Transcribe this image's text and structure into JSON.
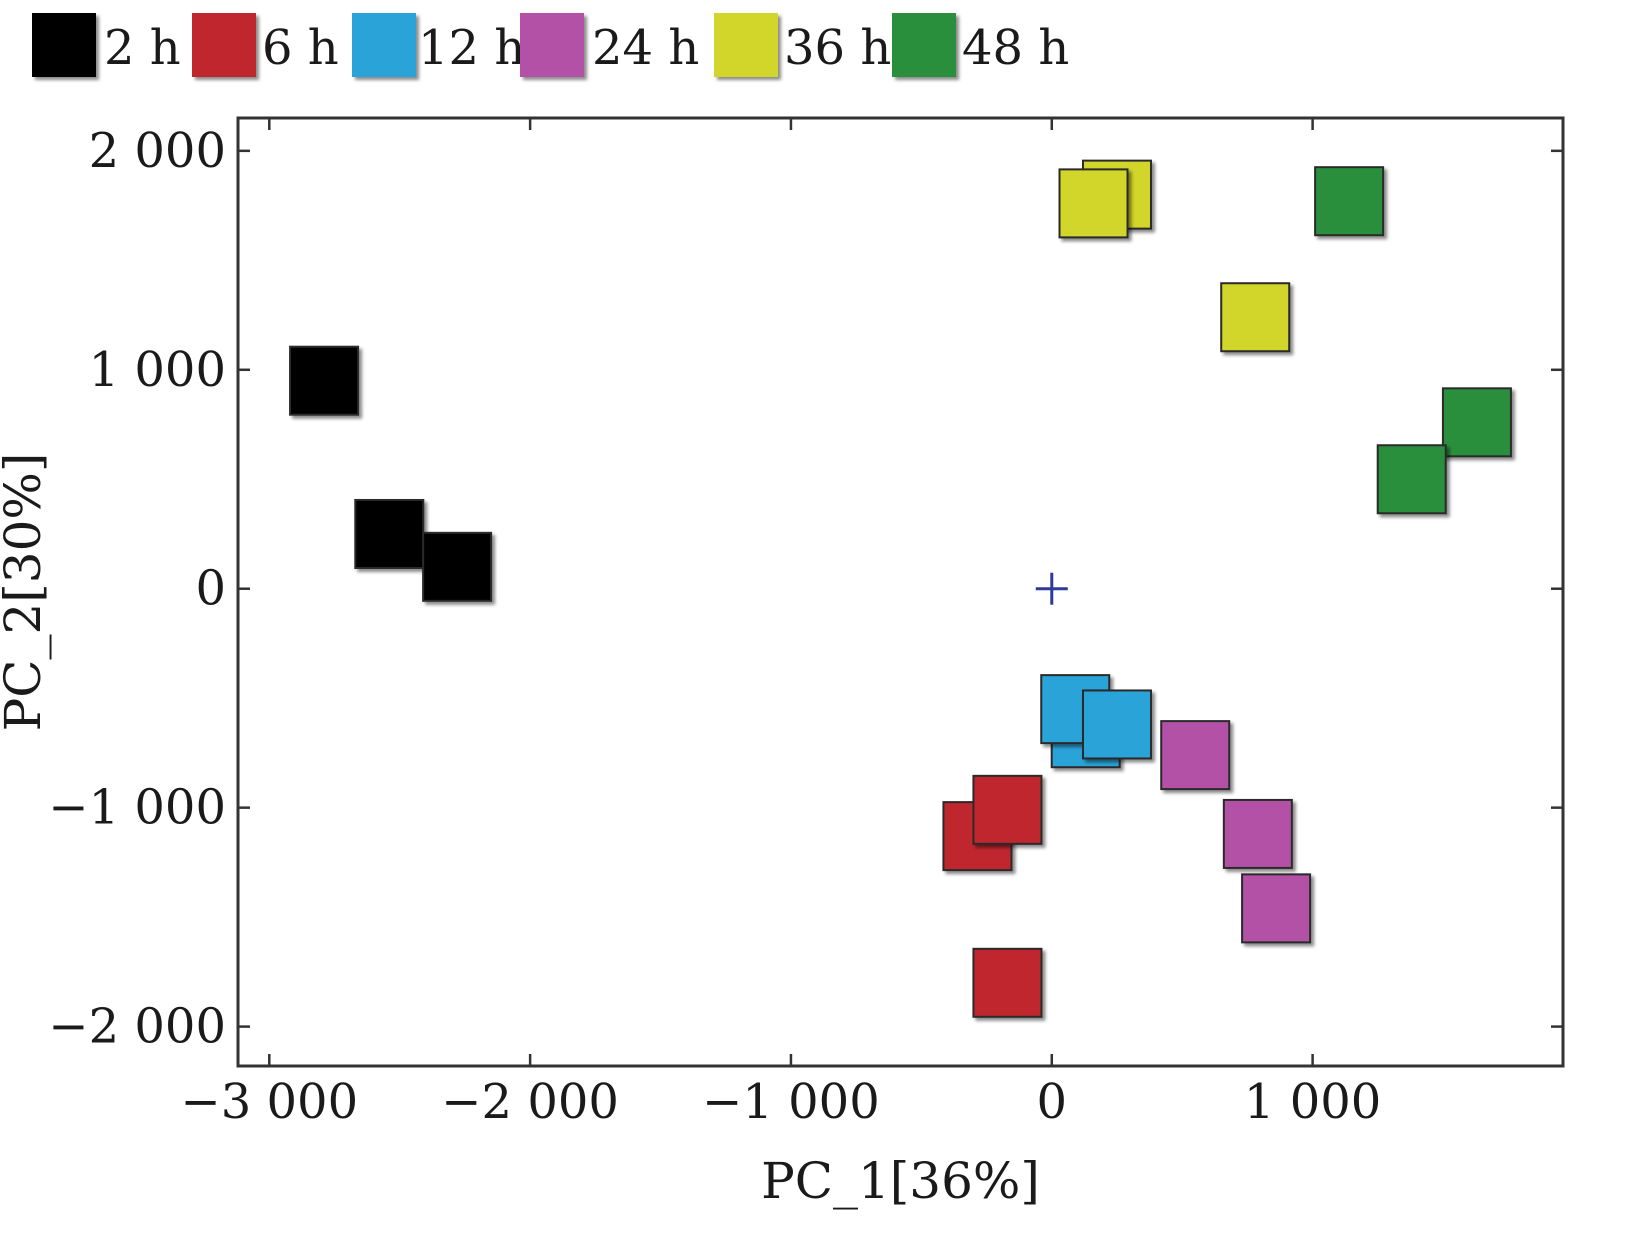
{
  "chart_data": {
    "type": "scatter",
    "title": "",
    "xlabel": "PC_1[36%]",
    "ylabel": "PC_2[30%]",
    "xlim": [
      -3120,
      1960
    ],
    "ylim": [
      -2180,
      2150
    ],
    "xticks": [
      -3000,
      -2000,
      -1000,
      0,
      1000
    ],
    "xtick_labels": [
      "−3 000",
      "−2 000",
      "−1 000",
      "0",
      "1 000"
    ],
    "yticks": [
      -2000,
      -1000,
      0,
      1000,
      2000
    ],
    "ytick_labels": [
      "−2 000",
      "−1 000",
      "0",
      "1 000",
      "2 000"
    ],
    "grid": false,
    "legend_position": "top",
    "marker": "square",
    "origin_marker": {
      "symbol": "+",
      "x": 0,
      "y": 0,
      "color": "#2b3a9c"
    },
    "series": [
      {
        "name": "2 h",
        "color": "#000000",
        "x": [
          -2790,
          -2540,
          -2280
        ],
        "y": [
          950,
          250,
          100
        ]
      },
      {
        "name": "6 h",
        "color": "#c0282d",
        "x": [
          -285,
          -170,
          -170
        ],
        "y": [
          -1130,
          -1010,
          -1800
        ]
      },
      {
        "name": "12 h",
        "color": "#2aa3d9",
        "x": [
          130,
          90,
          250
        ],
        "y": [
          -660,
          -550,
          -620
        ]
      },
      {
        "name": "24 h",
        "color": "#b351a6",
        "x": [
          550,
          790,
          860
        ],
        "y": [
          -760,
          -1120,
          -1460
        ]
      },
      {
        "name": "36 h",
        "color": "#d2d52b",
        "x": [
          250,
          160,
          780
        ],
        "y": [
          1800,
          1760,
          1240
        ]
      },
      {
        "name": "48 h",
        "color": "#2a8f3c",
        "x": [
          1140,
          1630,
          1380
        ],
        "y": [
          1770,
          760,
          500
        ]
      }
    ]
  }
}
